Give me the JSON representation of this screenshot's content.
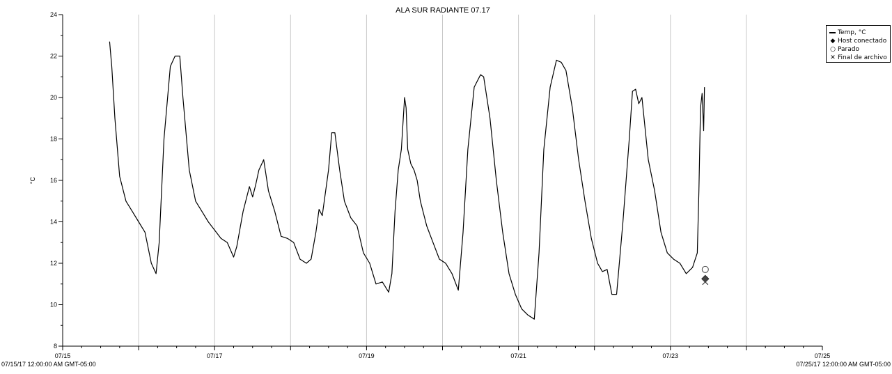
{
  "chart_data": {
    "type": "line",
    "title": "ALA SUR RADIANTE 07.17",
    "ylabel": "°C",
    "xlabel": "",
    "ylim": [
      8,
      24
    ],
    "y_ticks": [
      "8",
      "10",
      "12",
      "14",
      "16",
      "18",
      "20",
      "22",
      "24"
    ],
    "x_tick_labels": [
      "07/15",
      "07/17",
      "07/19",
      "07/21",
      "07/23",
      "07/25"
    ],
    "x_start_label": "07/15/17 12:00:00 AM GMT-05:00",
    "x_end_label": "07/25/17 12:00:00 AM GMT-05:00",
    "xlim": [
      "2017-07-15T00:00",
      "2017-07-25T00:00"
    ],
    "grid": "vertical, daily",
    "legend_position": "top-right",
    "series": [
      {
        "name": "Temp, °C",
        "x": [
          "2017-07-15T14:50",
          "2017-07-15T15:30",
          "2017-07-15T16:30",
          "2017-07-15T18:00",
          "2017-07-15T20:00",
          "2017-07-15T22:00",
          "2017-07-16T00:00",
          "2017-07-16T02:00",
          "2017-07-16T04:00",
          "2017-07-16T05:30",
          "2017-07-16T06:30",
          "2017-07-16T08:00",
          "2017-07-16T10:00",
          "2017-07-16T11:30",
          "2017-07-16T13:00",
          "2017-07-16T14:00",
          "2017-07-16T16:00",
          "2017-07-16T18:00",
          "2017-07-16T20:00",
          "2017-07-16T22:00",
          "2017-07-17T00:00",
          "2017-07-17T02:00",
          "2017-07-17T04:00",
          "2017-07-17T06:00",
          "2017-07-17T07:00",
          "2017-07-17T09:00",
          "2017-07-17T11:00",
          "2017-07-17T12:00",
          "2017-07-17T13:00",
          "2017-07-17T14:00",
          "2017-07-17T15:30",
          "2017-07-17T17:00",
          "2017-07-17T19:00",
          "2017-07-17T21:00",
          "2017-07-17T23:00",
          "2017-07-18T01:00",
          "2017-07-18T03:00",
          "2017-07-18T05:00",
          "2017-07-18T06:30",
          "2017-07-18T08:00",
          "2017-07-18T09:00",
          "2017-07-18T10:00",
          "2017-07-18T12:00",
          "2017-07-18T13:00",
          "2017-07-18T14:00",
          "2017-07-18T15:30",
          "2017-07-18T17:00",
          "2017-07-18T19:00",
          "2017-07-18T21:00",
          "2017-07-18T23:00",
          "2017-07-19T01:00",
          "2017-07-19T03:00",
          "2017-07-19T05:00",
          "2017-07-19T07:00",
          "2017-07-19T08:00",
          "2017-07-19T09:00",
          "2017-07-19T10:00",
          "2017-07-19T11:00",
          "2017-07-19T12:00",
          "2017-07-19T12:30",
          "2017-07-19T13:00",
          "2017-07-19T14:00",
          "2017-07-19T15:00",
          "2017-07-19T16:00",
          "2017-07-19T17:00",
          "2017-07-19T19:00",
          "2017-07-19T21:00",
          "2017-07-19T23:00",
          "2017-07-20T01:00",
          "2017-07-20T03:00",
          "2017-07-20T05:00",
          "2017-07-20T06:30",
          "2017-07-20T08:00",
          "2017-07-20T10:00",
          "2017-07-20T12:00",
          "2017-07-20T13:00",
          "2017-07-20T15:00",
          "2017-07-20T17:00",
          "2017-07-20T19:00",
          "2017-07-20T21:00",
          "2017-07-20T23:00",
          "2017-07-21T01:00",
          "2017-07-21T03:00",
          "2017-07-21T05:00",
          "2017-07-21T06:30",
          "2017-07-21T08:00",
          "2017-07-21T10:00",
          "2017-07-21T12:00",
          "2017-07-21T13:30",
          "2017-07-21T15:00",
          "2017-07-21T17:00",
          "2017-07-21T19:00",
          "2017-07-21T21:00",
          "2017-07-21T23:00",
          "2017-07-22T01:00",
          "2017-07-22T02:30",
          "2017-07-22T04:00",
          "2017-07-22T05:30",
          "2017-07-22T07:00",
          "2017-07-22T09:00",
          "2017-07-22T11:00",
          "2017-07-22T12:00",
          "2017-07-22T13:00",
          "2017-07-22T14:00",
          "2017-07-22T15:00",
          "2017-07-22T17:00",
          "2017-07-22T19:00",
          "2017-07-22T21:00",
          "2017-07-22T23:00",
          "2017-07-23T01:00",
          "2017-07-23T03:00",
          "2017-07-23T05:00",
          "2017-07-23T07:00",
          "2017-07-23T08:30",
          "2017-07-23T09:00",
          "2017-07-23T09:30",
          "2017-07-23T10:00",
          "2017-07-23T10:30",
          "2017-07-23T10:45"
        ],
        "y": [
          22.7,
          21.5,
          19.0,
          16.2,
          15.0,
          14.5,
          14.0,
          13.5,
          12.0,
          11.5,
          13.0,
          18.0,
          21.5,
          22.0,
          22.0,
          20.0,
          16.5,
          15.0,
          14.5,
          14.0,
          13.6,
          13.2,
          13.0,
          12.3,
          12.8,
          14.5,
          15.7,
          15.2,
          15.8,
          16.5,
          17.0,
          15.5,
          14.5,
          13.3,
          13.2,
          13.0,
          12.2,
          12.0,
          12.2,
          13.5,
          14.6,
          14.3,
          16.5,
          18.3,
          18.3,
          16.5,
          15.0,
          14.2,
          13.8,
          12.5,
          12.0,
          11.0,
          11.1,
          10.6,
          11.5,
          14.5,
          16.5,
          17.5,
          20.0,
          19.5,
          17.5,
          16.8,
          16.5,
          16.0,
          15.0,
          13.8,
          13.0,
          12.2,
          12.0,
          11.5,
          10.7,
          13.5,
          17.5,
          20.5,
          21.1,
          21.0,
          19.0,
          16.0,
          13.5,
          11.5,
          10.5,
          9.8,
          9.5,
          9.3,
          12.5,
          17.5,
          20.5,
          21.8,
          21.7,
          21.3,
          19.5,
          17.0,
          15.0,
          13.2,
          12.0,
          11.6,
          11.7,
          10.5,
          10.5,
          14.0,
          18.0,
          20.3,
          20.4,
          19.7,
          20.0,
          17.0,
          15.5,
          13.5,
          12.5,
          12.2,
          12.0,
          11.5,
          11.8,
          12.5,
          15.5,
          19.5,
          20.2,
          18.4,
          20.5
        ]
      }
    ],
    "markers": [
      {
        "name": "Host conectado",
        "symbol": "diamond",
        "x": "2017-07-23T11:00",
        "y": 11.25
      },
      {
        "name": "Parado",
        "symbol": "circle",
        "x": "2017-07-23T11:00",
        "y": 11.7
      },
      {
        "name": "Final de archivo",
        "symbol": "x",
        "x": "2017-07-23T11:00",
        "y": 11.1
      }
    ]
  },
  "legend": {
    "items": [
      {
        "label": "Temp, °C",
        "symbol": "line"
      },
      {
        "label": "Host conectado",
        "symbol": "◆"
      },
      {
        "label": "Parado",
        "symbol": "○"
      },
      {
        "label": "Final de archivo",
        "symbol": "✕"
      }
    ]
  }
}
